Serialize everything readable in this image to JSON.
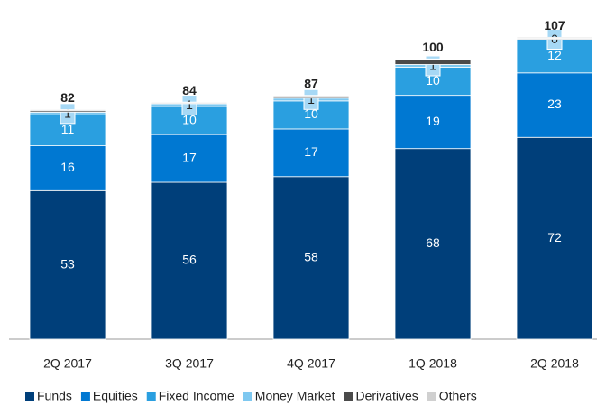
{
  "chart_data": {
    "type": "stacked-bar",
    "categories": [
      "2Q 2017",
      "3Q 2017",
      "4Q 2017",
      "1Q 2018",
      "2Q 2018"
    ],
    "series": [
      {
        "name": "Funds",
        "color": "#003f7a",
        "values": [
          53,
          56,
          58,
          68,
          72
        ]
      },
      {
        "name": "Equities",
        "color": "#0078d2",
        "values": [
          16,
          17,
          17,
          19,
          23
        ]
      },
      {
        "name": "Fixed Income",
        "color": "#2a9fe0",
        "values": [
          11,
          10,
          10,
          10,
          12
        ]
      },
      {
        "name": "Money Market",
        "color": "#7ec8f0",
        "values": [
          1,
          1,
          1,
          1,
          0
        ]
      },
      {
        "name": "Derivatives",
        "color": "#4a4a4a",
        "values": [
          0.5,
          0.3,
          0.6,
          1.8,
          0.3
        ]
      },
      {
        "name": "Others",
        "color": "#d0d0d0",
        "values": [
          0.4,
          0.3,
          0.4,
          0.2,
          0.4
        ]
      }
    ],
    "totals": [
      82,
      84,
      87,
      100,
      107
    ],
    "ylim": [
      0,
      121
    ],
    "legend": "bottom"
  }
}
